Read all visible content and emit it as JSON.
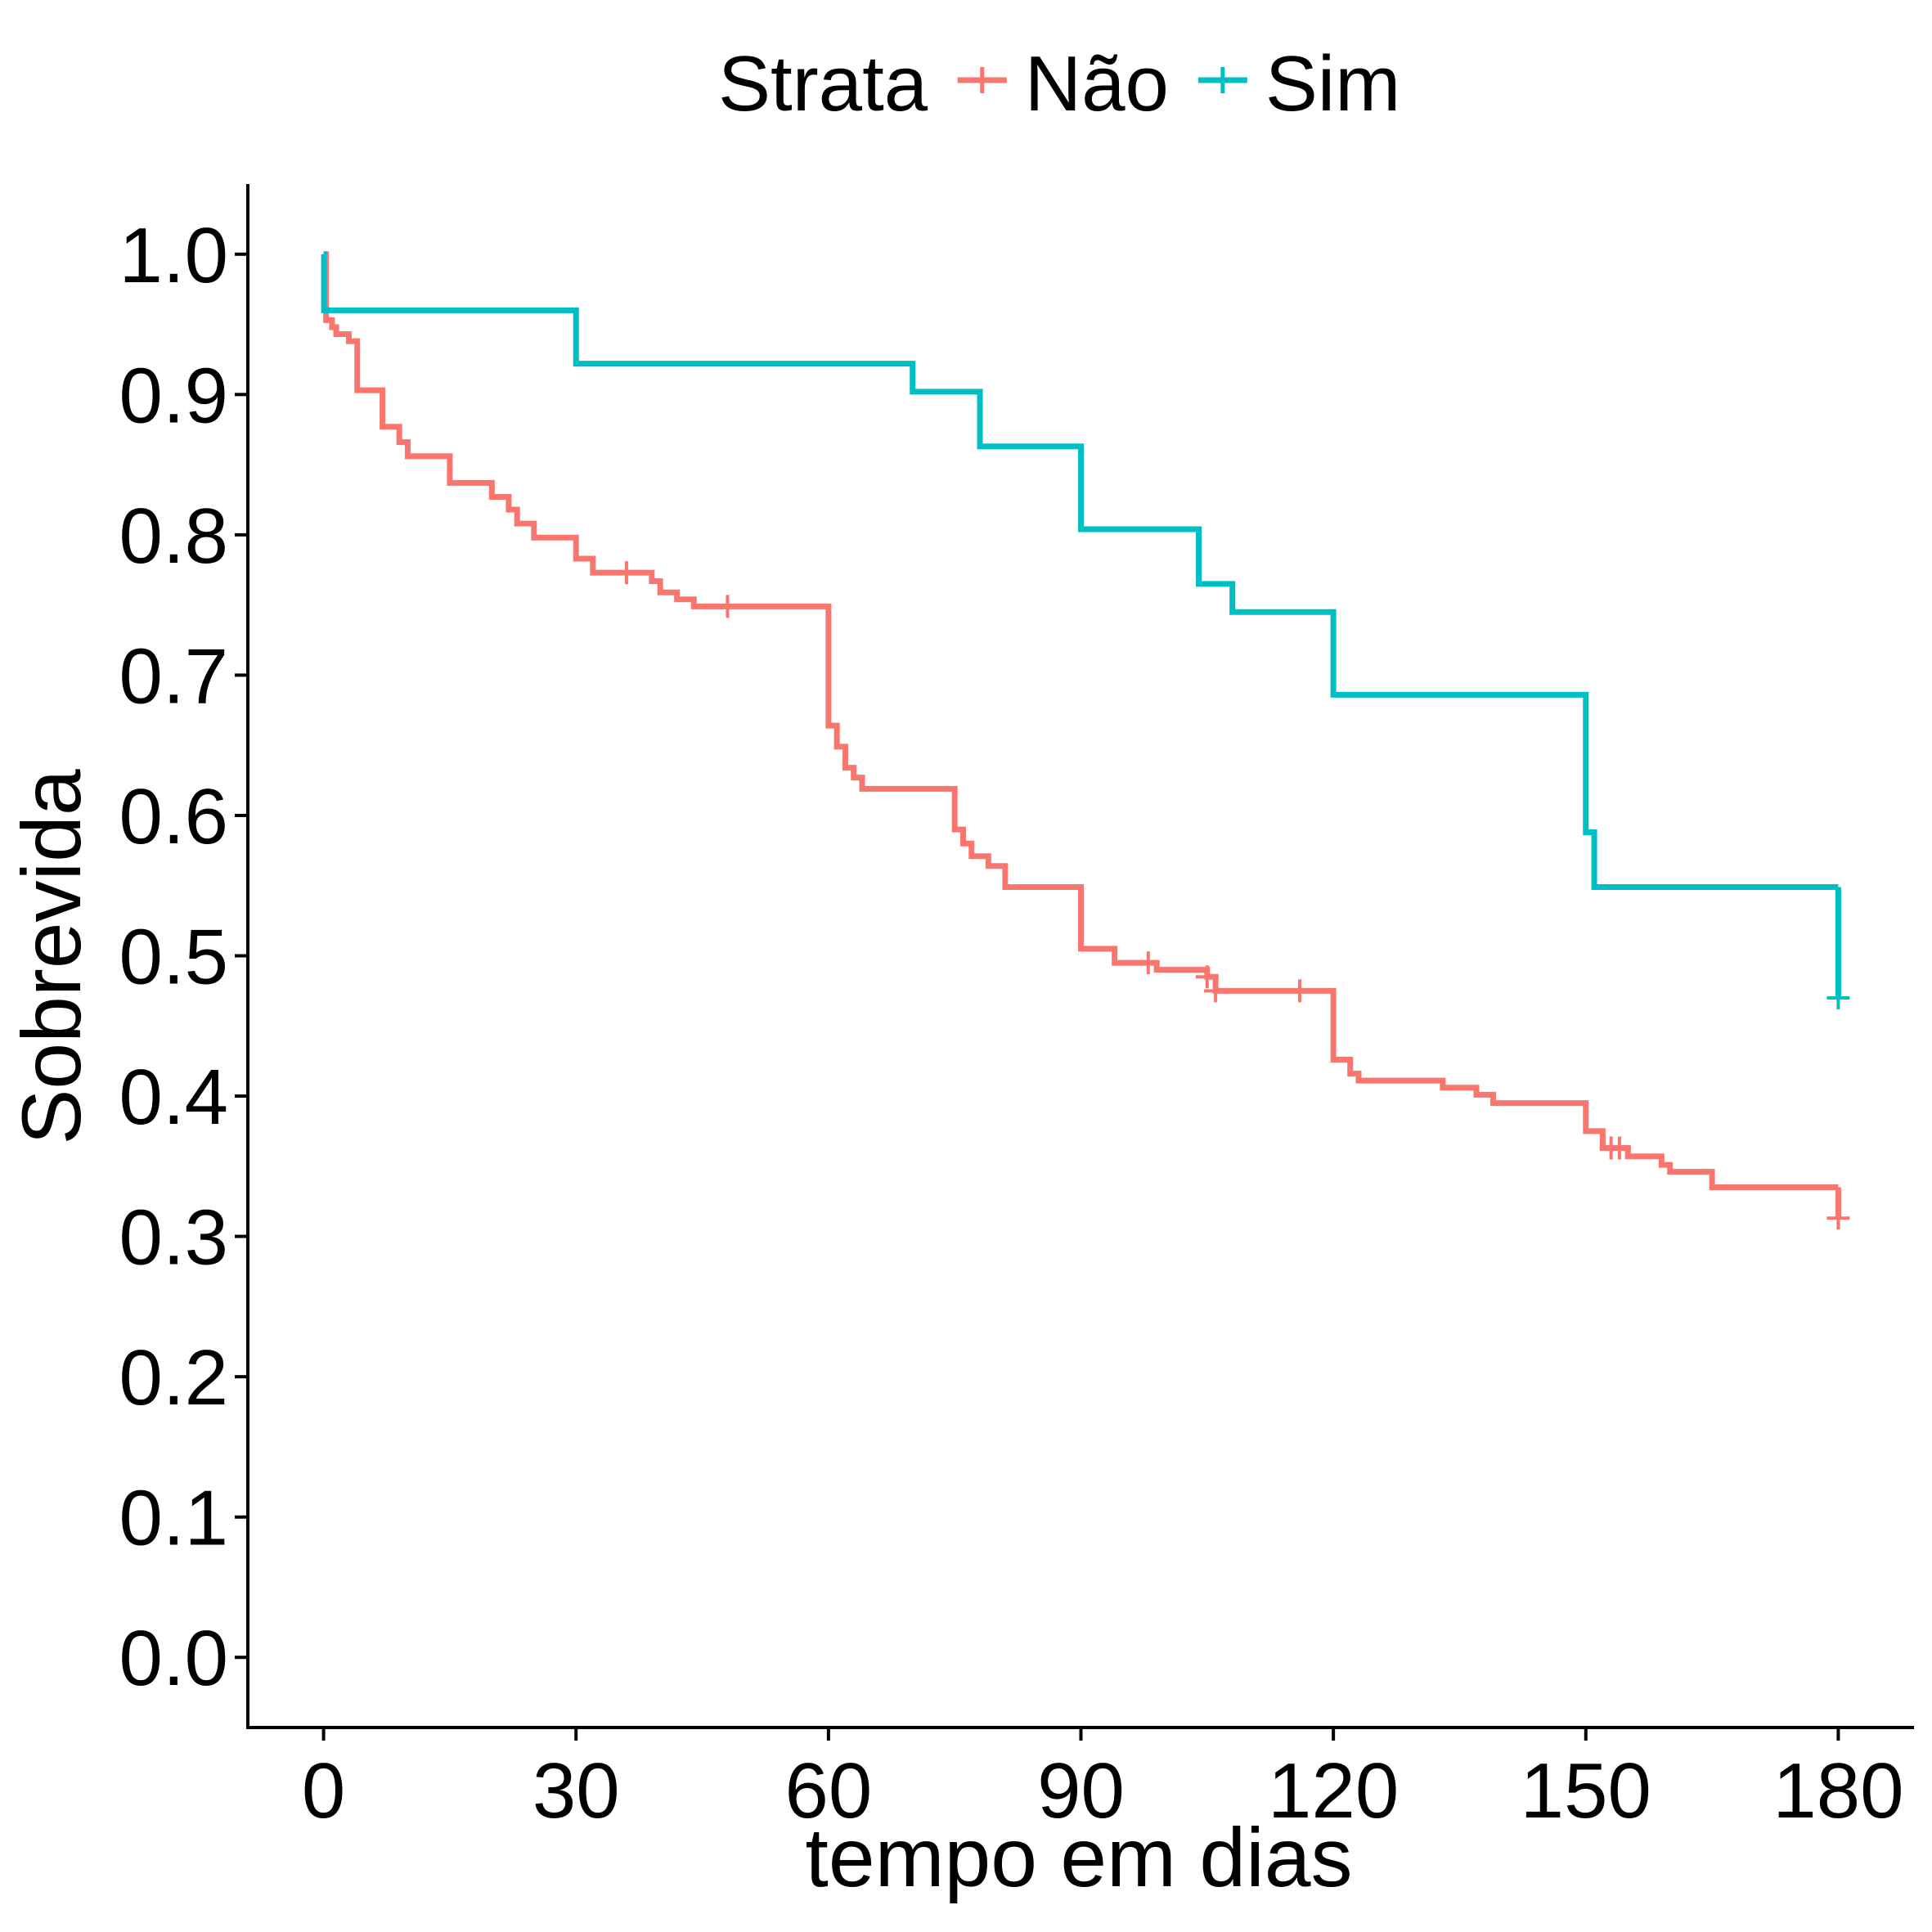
{
  "chart_data": {
    "type": "line",
    "subtype": "kaplan-meier-step",
    "xlabel": "tempo em dias",
    "ylabel": "Sobrevida",
    "xlim": [
      -9,
      189
    ],
    "ylim": [
      -0.05,
      1.05
    ],
    "x_ticks": [
      0,
      30,
      60,
      90,
      120,
      150,
      180
    ],
    "x_tick_labels": [
      "0",
      "30",
      "60",
      "90",
      "120",
      "150",
      "180"
    ],
    "y_ticks": [
      0,
      0.1,
      0.2,
      0.3,
      0.4,
      0.5,
      0.6,
      0.7,
      0.8,
      0.9,
      1.0
    ],
    "y_tick_labels": [
      "0.0",
      "0.1",
      "0.2",
      "0.3",
      "0.4",
      "0.5",
      "0.6",
      "0.7",
      "0.8",
      "0.9",
      "1.0"
    ],
    "grid": false,
    "legend": {
      "title": "Strata",
      "position": "top",
      "entries": [
        "Não",
        "Sim"
      ]
    },
    "series": [
      {
        "name": "Não",
        "color": "#F8766D",
        "steps": [
          [
            0,
            1.0
          ],
          [
            0.3,
            0.953
          ],
          [
            1,
            0.948
          ],
          [
            1.5,
            0.943
          ],
          [
            3,
            0.938
          ],
          [
            4,
            0.903
          ],
          [
            7,
            0.877
          ],
          [
            9,
            0.866
          ],
          [
            10,
            0.856
          ],
          [
            15,
            0.837
          ],
          [
            20,
            0.827
          ],
          [
            22,
            0.818
          ],
          [
            23,
            0.808
          ],
          [
            25,
            0.798
          ],
          [
            30,
            0.783
          ],
          [
            32,
            0.773
          ],
          [
            39,
            0.767
          ],
          [
            40,
            0.759
          ],
          [
            42,
            0.754
          ],
          [
            44,
            0.749
          ],
          [
            60,
            0.664
          ],
          [
            61,
            0.649
          ],
          [
            62,
            0.634
          ],
          [
            63,
            0.627
          ],
          [
            64,
            0.619
          ],
          [
            75,
            0.59
          ],
          [
            76,
            0.58
          ],
          [
            77,
            0.571
          ],
          [
            79,
            0.564
          ],
          [
            81,
            0.549
          ],
          [
            90,
            0.505
          ],
          [
            94,
            0.495
          ],
          [
            99,
            0.49
          ],
          [
            105,
            0.485
          ],
          [
            106,
            0.475
          ],
          [
            120,
            0.426
          ],
          [
            122,
            0.416
          ],
          [
            123,
            0.411
          ],
          [
            133,
            0.406
          ],
          [
            137,
            0.401
          ],
          [
            139,
            0.395
          ],
          [
            150,
            0.375
          ],
          [
            152,
            0.363
          ],
          [
            155,
            0.357
          ],
          [
            159,
            0.351
          ],
          [
            160,
            0.346
          ],
          [
            165,
            0.335
          ],
          [
            180,
            0.335
          ]
        ],
        "censored": [
          [
            36,
            0.773
          ],
          [
            48,
            0.749
          ],
          [
            98,
            0.495
          ],
          [
            105,
            0.485
          ],
          [
            106,
            0.475
          ],
          [
            116,
            0.475
          ],
          [
            153,
            0.363
          ],
          [
            154,
            0.363
          ],
          [
            180,
            0.313
          ]
        ]
      },
      {
        "name": "Sim",
        "color": "#00BFC4",
        "steps": [
          [
            0,
            1.0
          ],
          [
            0.05,
            0.96
          ],
          [
            30,
            0.922
          ],
          [
            70,
            0.902
          ],
          [
            78,
            0.863
          ],
          [
            90,
            0.804
          ],
          [
            104,
            0.765
          ],
          [
            108,
            0.745
          ],
          [
            120,
            0.686
          ],
          [
            150,
            0.588
          ],
          [
            151,
            0.549
          ],
          [
            180,
            0.549
          ]
        ],
        "censored": [
          [
            180,
            0.47
          ]
        ]
      }
    ]
  }
}
